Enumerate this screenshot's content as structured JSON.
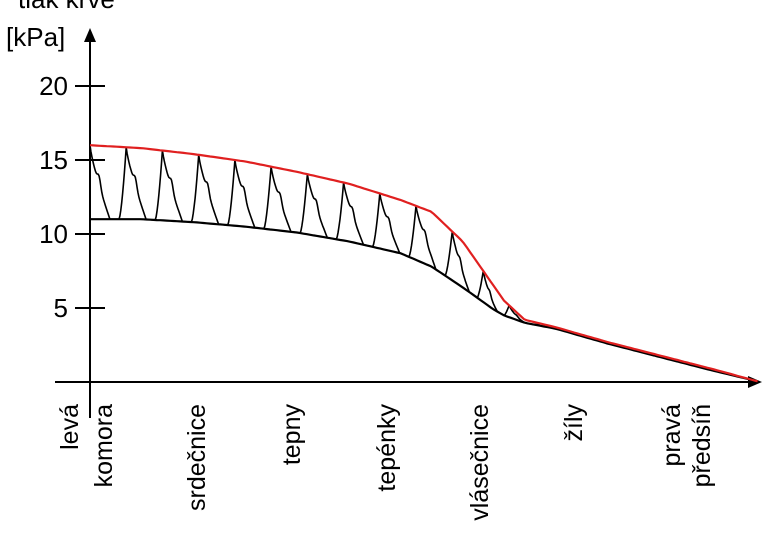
{
  "chart_data": {
    "type": "line",
    "title": "",
    "ylabel_top": "tlak krve",
    "ylabel": "[kPa]",
    "yticks": [
      5,
      10,
      15,
      20
    ],
    "ylim": [
      0,
      21
    ],
    "categories": [
      [
        "levá",
        "komora"
      ],
      [
        "srdečnice"
      ],
      [
        "tepny"
      ],
      [
        "tepénky"
      ],
      [
        "vlásečnice"
      ],
      [
        "žíly"
      ],
      [
        "pravá",
        "předsíň"
      ]
    ],
    "series": [
      {
        "color": "#e02020",
        "x": [
          0.0,
          0.5,
          1.0,
          1.5,
          2.0,
          2.5,
          3.0,
          3.3,
          3.6,
          3.9,
          4.0,
          4.2,
          4.5,
          5.0,
          5.5,
          6.0,
          6.45
        ],
        "y": [
          16.0,
          15.8,
          15.4,
          14.9,
          14.2,
          13.4,
          12.3,
          11.5,
          9.5,
          6.5,
          5.5,
          4.2,
          3.7,
          2.7,
          1.8,
          0.9,
          0.05
        ]
      },
      {
        "color": "#000000",
        "x": [
          0.0,
          0.5,
          1.0,
          1.5,
          2.0,
          2.5,
          3.0,
          3.3,
          3.6,
          3.9,
          4.0,
          4.2,
          4.5,
          5.0,
          5.5,
          6.0,
          6.45
        ],
        "y": [
          11.0,
          11.0,
          10.8,
          10.5,
          10.1,
          9.5,
          8.7,
          7.8,
          6.4,
          4.9,
          4.5,
          4.0,
          3.6,
          2.6,
          1.7,
          0.8,
          0.05
        ]
      }
    ],
    "pulse_peaks_x": [
      0.0,
      0.35,
      0.7,
      1.05,
      1.4,
      1.75,
      2.1,
      2.45,
      2.8,
      3.15,
      3.5,
      3.8,
      4.05
    ],
    "colors": {
      "upper": "#e02020",
      "lower": "#000000",
      "pulse": "#000000",
      "axis": "#000000"
    }
  }
}
